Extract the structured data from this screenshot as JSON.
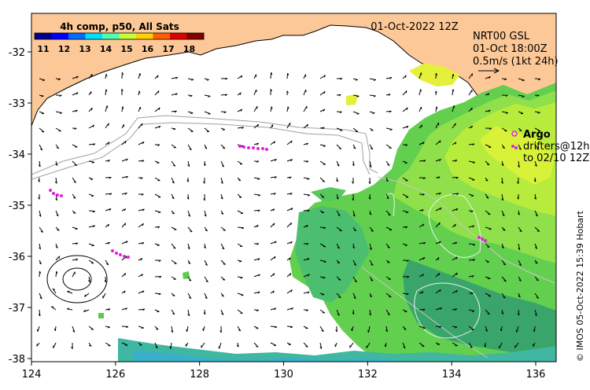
{
  "map": {
    "date_label": "01-Oct-2022 12Z",
    "product": {
      "line1": "NRT00 GSL",
      "line2": "01-Oct 18:00Z",
      "line3": "0.5m/s (1kt 24h)"
    },
    "colorbar": {
      "title": "4h comp, p50, All Sats",
      "ticks": [
        "11",
        "12",
        "13",
        "14",
        "15",
        "16",
        "17",
        "18"
      ],
      "colors": [
        "#00008f",
        "#0000ff",
        "#006fff",
        "#00dfff",
        "#4fffaf",
        "#bfff3f",
        "#ffcf00",
        "#ff5f00",
        "#df0000",
        "#800000"
      ]
    },
    "legend": {
      "title": "Argo",
      "line2": "drifters@12h",
      "line3": "to 02/10 12Z"
    },
    "credit": "© IMOS 05-Oct-2022 15:39 Hobart",
    "x_ticks": [
      "124",
      "126",
      "128",
      "130",
      "132",
      "134",
      "136"
    ],
    "y_ticks": [
      "-32",
      "-33",
      "-34",
      "-35",
      "-36",
      "-37",
      "-38"
    ],
    "colors": {
      "land": "#fdc897",
      "drifter": "#e020e0",
      "contour": "#a0a0a0"
    }
  }
}
